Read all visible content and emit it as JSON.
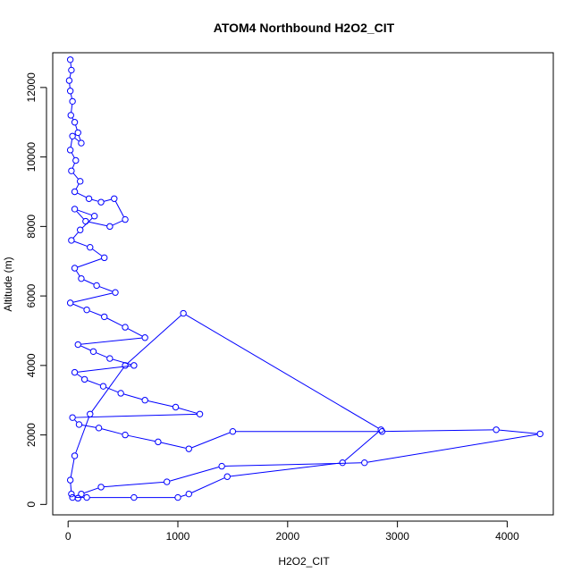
{
  "chart_data": {
    "type": "scatter",
    "title": "ATOM4 Northbound H2O2_CIT",
    "xlabel": "H2O2_CIT",
    "ylabel": "Altitude (m)",
    "xlim": [
      -140,
      4420
    ],
    "ylim": [
      -300,
      13000
    ],
    "xticks": [
      0,
      1000,
      2000,
      3000,
      4000
    ],
    "yticks": [
      0,
      2000,
      4000,
      6000,
      8000,
      10000,
      12000
    ],
    "grid": false,
    "legend": "none",
    "color": "#0000FF",
    "series": [
      {
        "name": "",
        "points": [
          [
            20,
            12800
          ],
          [
            30,
            12500
          ],
          [
            10,
            12200
          ],
          [
            20,
            11900
          ],
          [
            40,
            11600
          ],
          [
            25,
            11200
          ],
          [
            60,
            11000
          ],
          [
            90,
            10700
          ],
          [
            120,
            10400
          ],
          [
            40,
            10600
          ],
          [
            20,
            10200
          ],
          [
            70,
            9900
          ],
          [
            30,
            9600
          ],
          [
            110,
            9300
          ],
          [
            60,
            9000
          ],
          [
            190,
            8800
          ],
          [
            300,
            8700
          ],
          [
            420,
            8800
          ],
          [
            520,
            8200
          ],
          [
            380,
            8000
          ],
          [
            160,
            8150
          ],
          [
            60,
            8500
          ],
          [
            240,
            8300
          ],
          [
            110,
            7900
          ],
          [
            30,
            7600
          ],
          [
            200,
            7400
          ],
          [
            330,
            7100
          ],
          [
            60,
            6800
          ],
          [
            120,
            6500
          ],
          [
            260,
            6300
          ],
          [
            430,
            6100
          ],
          [
            20,
            5800
          ],
          [
            170,
            5600
          ],
          [
            330,
            5400
          ],
          [
            520,
            5100
          ],
          [
            700,
            4800
          ],
          [
            90,
            4600
          ],
          [
            230,
            4400
          ],
          [
            380,
            4200
          ],
          [
            600,
            4000
          ],
          [
            60,
            3800
          ],
          [
            150,
            3600
          ],
          [
            320,
            3400
          ],
          [
            480,
            3200
          ],
          [
            700,
            3000
          ],
          [
            980,
            2800
          ],
          [
            1200,
            2600
          ],
          [
            40,
            2500
          ],
          [
            100,
            2300
          ],
          [
            280,
            2200
          ],
          [
            520,
            2000
          ],
          [
            820,
            1800
          ],
          [
            1100,
            1600
          ],
          [
            1500,
            2100
          ],
          [
            2860,
            2100
          ],
          [
            3900,
            2150
          ],
          [
            4300,
            2030
          ],
          [
            2700,
            1200
          ],
          [
            1400,
            1100
          ],
          [
            900,
            650
          ],
          [
            300,
            500
          ],
          [
            120,
            300
          ],
          [
            40,
            200
          ],
          [
            170,
            200
          ],
          [
            600,
            200
          ],
          [
            1000,
            200
          ],
          [
            1100,
            300
          ],
          [
            1450,
            800
          ],
          [
            2500,
            1200
          ],
          [
            2850,
            2150
          ],
          [
            1050,
            5500
          ],
          [
            520,
            4000
          ],
          [
            200,
            2600
          ],
          [
            60,
            1400
          ],
          [
            20,
            700
          ],
          [
            30,
            300
          ],
          [
            90,
            180
          ]
        ]
      }
    ]
  }
}
